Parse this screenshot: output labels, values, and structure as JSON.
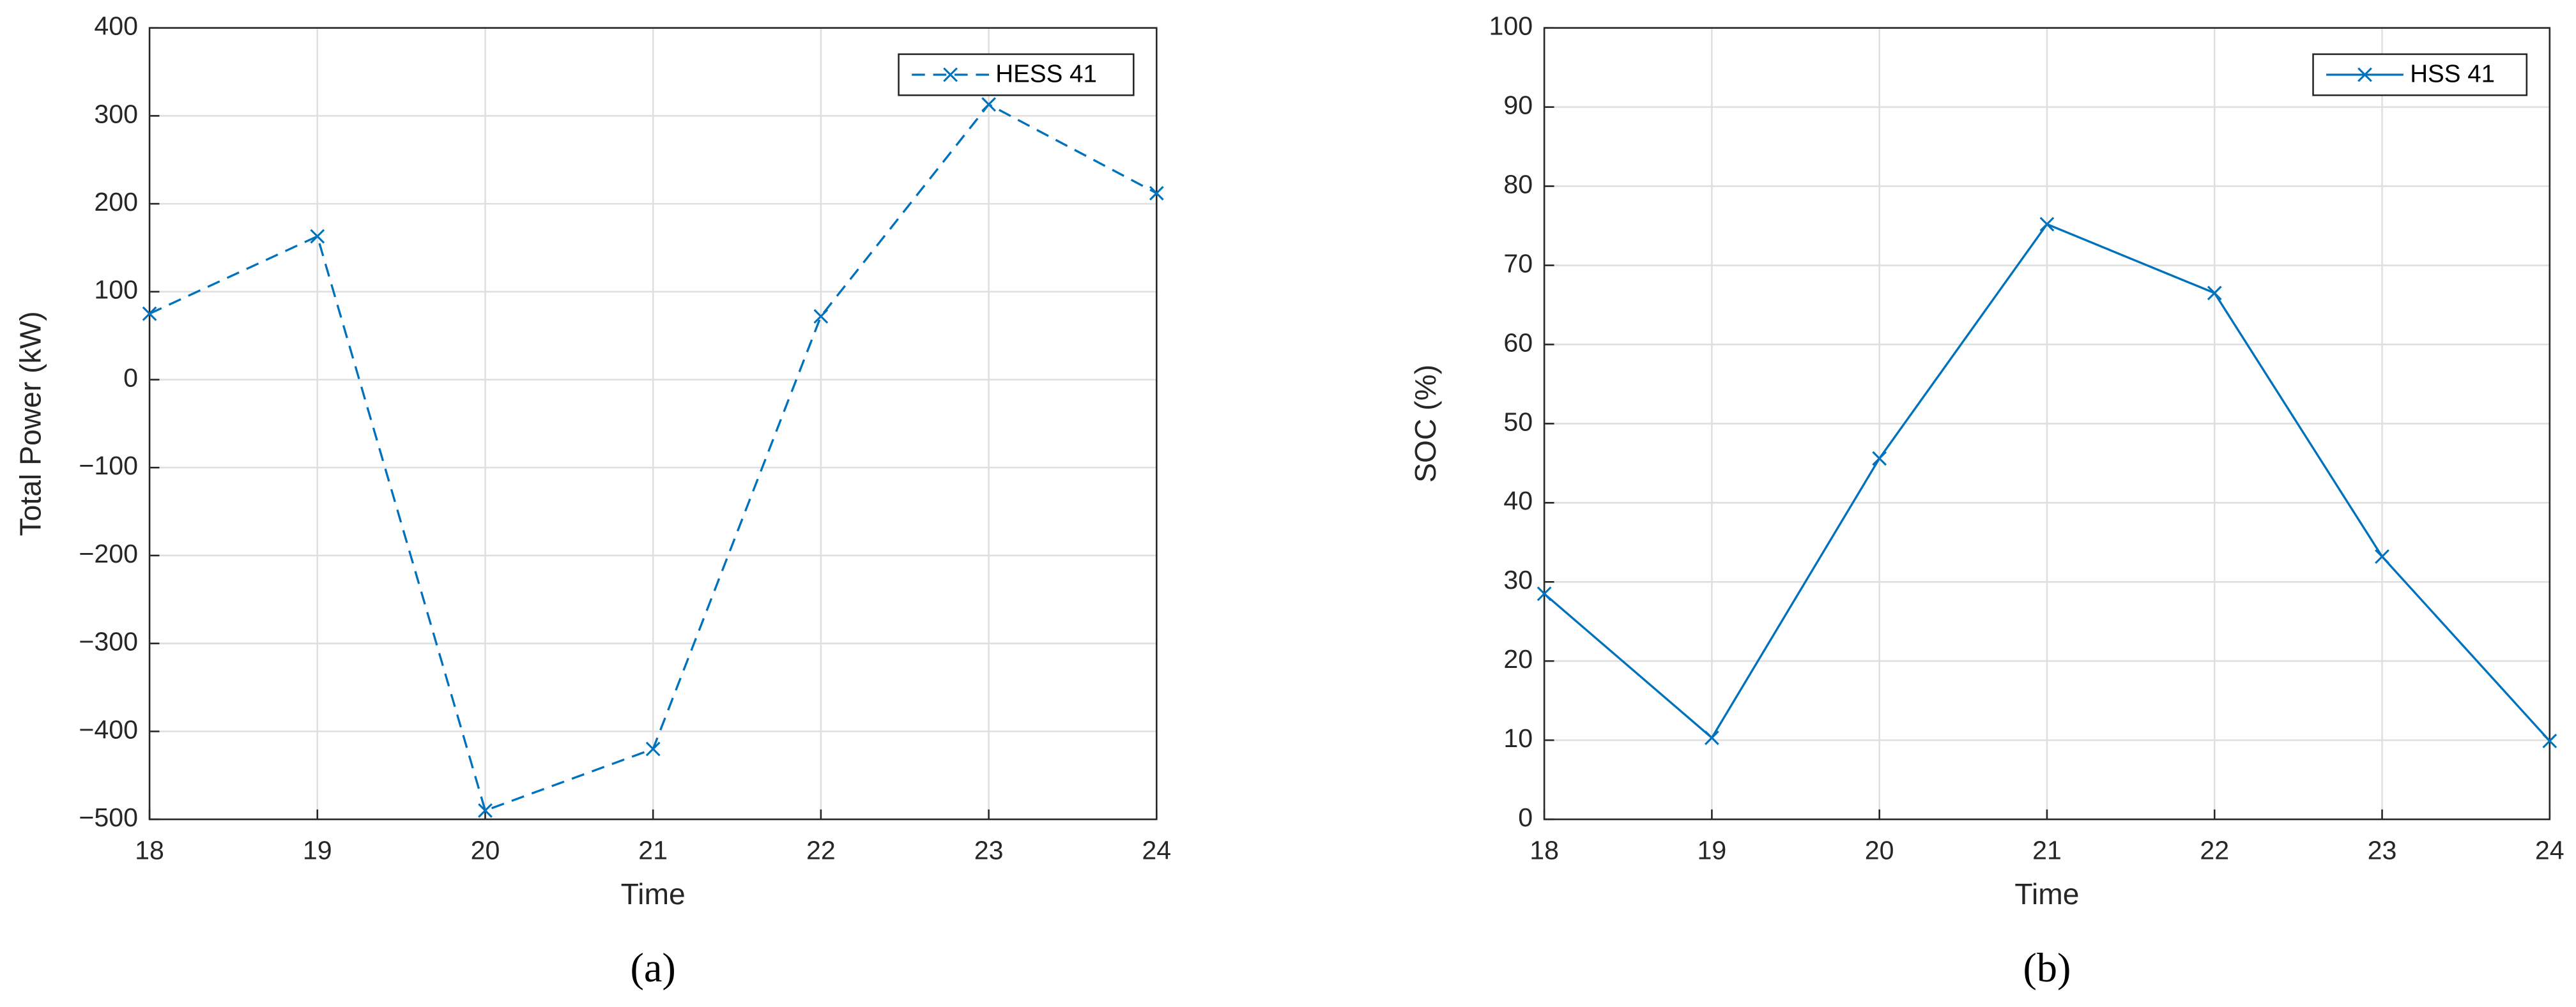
{
  "chart_data": [
    {
      "type": "line",
      "caption": "(a)",
      "x_label": "Time",
      "y_label": "Total Power (kW)",
      "x": [
        18,
        19,
        20,
        21,
        22,
        23,
        24
      ],
      "series": [
        {
          "name": "HESS 41",
          "color": "#0072bd",
          "linestyle": "dashed",
          "marker": "x",
          "values": [
            75,
            163,
            -490,
            -420,
            72,
            313,
            212
          ]
        }
      ],
      "xlim": [
        18,
        24
      ],
      "xticks": [
        18,
        19,
        20,
        21,
        22,
        23,
        24
      ],
      "ylim": [
        -500,
        400
      ],
      "yticks": [
        {
          "value": -500,
          "label": "−500"
        },
        {
          "value": -400,
          "label": "−400"
        },
        {
          "value": -300,
          "label": "−300"
        },
        {
          "value": -200,
          "label": "−200"
        },
        {
          "value": -100,
          "label": "−100"
        },
        0,
        100,
        200,
        300,
        400
      ],
      "grid": true,
      "legend": "upper right"
    },
    {
      "type": "line",
      "caption": "(b)",
      "x_label": "Time",
      "y_label": "SOC (%)",
      "x": [
        18,
        19,
        20,
        21,
        22,
        23,
        24
      ],
      "series": [
        {
          "name": "HSS 41",
          "color": "#0072bd",
          "linestyle": "solid",
          "marker": "x",
          "values": [
            28.5,
            10.3,
            45.6,
            75.2,
            66.5,
            33.2,
            9.9
          ]
        }
      ],
      "xlim": [
        18,
        24
      ],
      "xticks": [
        18,
        19,
        20,
        21,
        22,
        23,
        24
      ],
      "ylim": [
        0,
        100
      ],
      "yticks": [
        0,
        10,
        20,
        30,
        40,
        50,
        60,
        70,
        80,
        90,
        100
      ],
      "grid": true,
      "legend": "upper right"
    }
  ]
}
